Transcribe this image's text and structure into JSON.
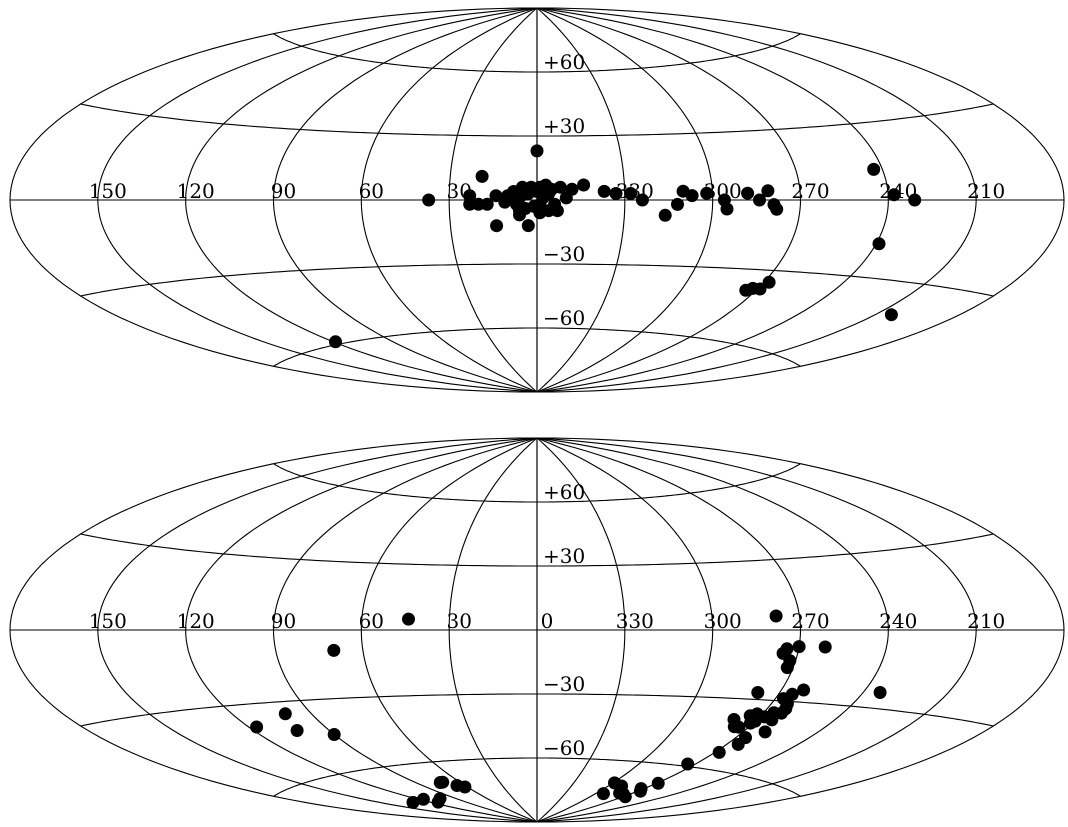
{
  "chart_data": [
    {
      "type": "scatter",
      "projection": "aitoff",
      "coordinate_system": "galactic",
      "x_unit": "longitude (deg)",
      "y_unit": "latitude (deg)",
      "xlim": [
        -180,
        180
      ],
      "ylim": [
        -90,
        90
      ],
      "grid": true,
      "longitude_tick_labels": [
        "210",
        "240",
        "270",
        "300",
        "330",
        "0",
        "30",
        "60",
        "90",
        "120",
        "150"
      ],
      "latitude_tick_labels": [
        "+60",
        "+30",
        "−30",
        "−60"
      ],
      "marker_color": "#000000",
      "points": [
        {
          "l": 243,
          "b": 12
        },
        {
          "l": 238,
          "b": 2
        },
        {
          "l": 231,
          "b": 0
        },
        {
          "l": 239,
          "b": -17
        },
        {
          "l": 204,
          "b": -41
        },
        {
          "l": 268,
          "b": -35
        },
        {
          "l": 269,
          "b": -38
        },
        {
          "l": 272,
          "b": -38
        },
        {
          "l": 274,
          "b": -39
        },
        {
          "l": 281,
          "b": 4
        },
        {
          "l": 284,
          "b": 0
        },
        {
          "l": 279,
          "b": -2
        },
        {
          "l": 278,
          "b": -4
        },
        {
          "l": 288,
          "b": 3
        },
        {
          "l": 296,
          "b": 0
        },
        {
          "l": 295,
          "b": -4
        },
        {
          "l": 302,
          "b": 3
        },
        {
          "l": 307,
          "b": 2
        },
        {
          "l": 310,
          "b": 4
        },
        {
          "l": 312,
          "b": -2
        },
        {
          "l": 316,
          "b": -7
        },
        {
          "l": 324,
          "b": 0
        },
        {
          "l": 328,
          "b": 3
        },
        {
          "l": 333,
          "b": 3
        },
        {
          "l": 337,
          "b": 4
        },
        {
          "l": 344,
          "b": 7
        },
        {
          "l": 348,
          "b": 5
        },
        {
          "l": 350,
          "b": 1
        },
        {
          "l": 352,
          "b": 6
        },
        {
          "l": 355,
          "b": 5
        },
        {
          "l": 356,
          "b": 3
        },
        {
          "l": 357,
          "b": 7
        },
        {
          "l": 358,
          "b": 1
        },
        {
          "l": 359,
          "b": 6
        },
        {
          "l": 359,
          "b": -2
        },
        {
          "l": 2,
          "b": 6
        },
        {
          "l": 3,
          "b": 3
        },
        {
          "l": 5,
          "b": 6
        },
        {
          "l": 6,
          "b": 1
        },
        {
          "l": 7,
          "b": -2
        },
        {
          "l": 8,
          "b": 4
        },
        {
          "l": 10,
          "b": 2
        },
        {
          "l": 11,
          "b": -1
        },
        {
          "l": 14,
          "b": 2
        },
        {
          "l": 17,
          "b": -2
        },
        {
          "l": 20,
          "b": -2
        },
        {
          "l": 23,
          "b": 2
        },
        {
          "l": 23,
          "b": -2
        },
        {
          "l": 0,
          "b": 4
        },
        {
          "l": 353,
          "b": -5
        },
        {
          "l": 354,
          "b": -2
        },
        {
          "l": 356,
          "b": -5
        },
        {
          "l": 359,
          "b": -6
        },
        {
          "l": 1,
          "b": -3
        },
        {
          "l": 3,
          "b": -12
        },
        {
          "l": 4,
          "b": -4
        },
        {
          "l": 6,
          "b": -5
        },
        {
          "l": 6,
          "b": -7
        },
        {
          "l": 0,
          "b": 23
        },
        {
          "l": 19,
          "b": 11
        },
        {
          "l": 14,
          "b": -12
        },
        {
          "l": 37,
          "b": 0
        },
        {
          "l": 119,
          "b": -59
        }
      ]
    },
    {
      "type": "scatter",
      "projection": "aitoff",
      "coordinate_system": "galactic",
      "x_unit": "longitude (deg)",
      "y_unit": "latitude (deg)",
      "xlim": [
        -180,
        180
      ],
      "ylim": [
        -90,
        90
      ],
      "grid": true,
      "longitude_tick_labels": [
        "210",
        "240",
        "270",
        "300",
        "330",
        "0",
        "30",
        "60",
        "90",
        "120",
        "150"
      ],
      "latitude_tick_labels": [
        "+60",
        "+30",
        "−30",
        "−60"
      ],
      "marker_color": "#000000",
      "points": [
        {
          "l": 278,
          "b": 6
        },
        {
          "l": 261,
          "b": -7
        },
        {
          "l": 270,
          "b": -7
        },
        {
          "l": 274,
          "b": -8
        },
        {
          "l": 275,
          "b": -10
        },
        {
          "l": 272,
          "b": -13
        },
        {
          "l": 272,
          "b": -16
        },
        {
          "l": 234,
          "b": -24
        },
        {
          "l": 262,
          "b": -25
        },
        {
          "l": 265,
          "b": -27
        },
        {
          "l": 264,
          "b": -31
        },
        {
          "l": 267,
          "b": -29
        },
        {
          "l": 263,
          "b": -33
        },
        {
          "l": 263,
          "b": -35
        },
        {
          "l": 264,
          "b": -38
        },
        {
          "l": 266,
          "b": -35
        },
        {
          "l": 268,
          "b": -37
        },
        {
          "l": 270,
          "b": -39
        },
        {
          "l": 272,
          "b": -36
        },
        {
          "l": 271,
          "b": -40
        },
        {
          "l": 274,
          "b": -37
        },
        {
          "l": 274,
          "b": -42
        },
        {
          "l": 278,
          "b": -27
        },
        {
          "l": 279,
          "b": -39
        },
        {
          "l": 276,
          "b": -42
        },
        {
          "l": 261,
          "b": -43
        },
        {
          "l": 266,
          "b": -46
        },
        {
          "l": 265,
          "b": -49
        },
        {
          "l": 268,
          "b": -53
        },
        {
          "l": 274,
          "b": -59
        },
        {
          "l": 269,
          "b": -68
        },
        {
          "l": 272,
          "b": -71
        },
        {
          "l": 268,
          "b": -72
        },
        {
          "l": 268,
          "b": -75
        },
        {
          "l": 276,
          "b": -74
        },
        {
          "l": 280,
          "b": -74
        },
        {
          "l": 290,
          "b": -71
        },
        {
          "l": 299,
          "b": -70
        },
        {
          "l": 293,
          "b": -75
        },
        {
          "l": 44,
          "b": 5
        },
        {
          "l": 70,
          "b": -9
        },
        {
          "l": 62,
          "b": -72
        },
        {
          "l": 66,
          "b": -71
        },
        {
          "l": 72,
          "b": -69
        },
        {
          "l": 74,
          "b": -69
        },
        {
          "l": 100,
          "b": -35
        },
        {
          "l": 103,
          "b": -42
        },
        {
          "l": 117,
          "b": -39
        },
        {
          "l": 90,
          "b": -45
        },
        {
          "l": 103,
          "b": -75
        },
        {
          "l": 114,
          "b": -76
        },
        {
          "l": 117,
          "b": -74
        },
        {
          "l": 132,
          "b": -74
        }
      ]
    }
  ]
}
